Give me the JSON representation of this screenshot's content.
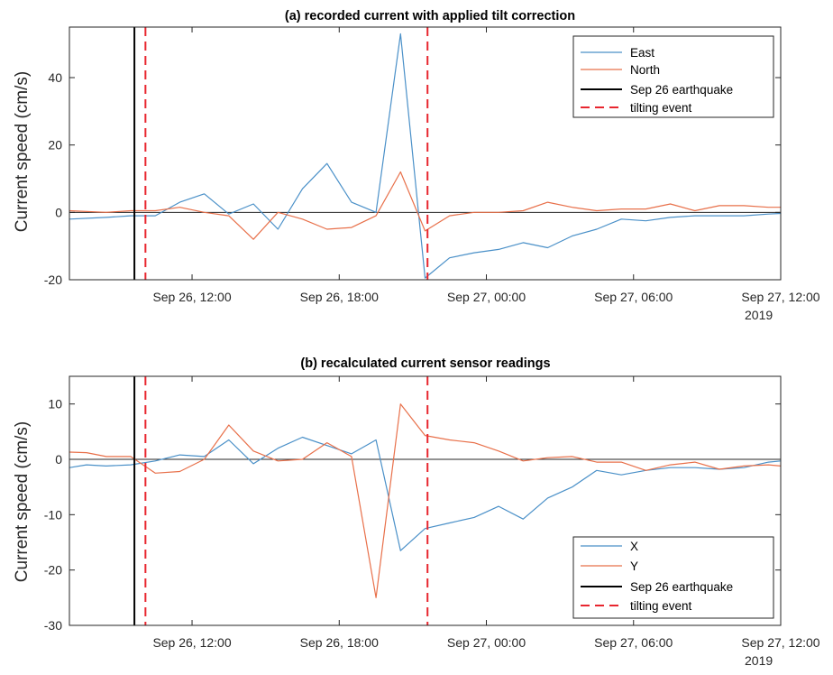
{
  "chart_data": [
    {
      "type": "line",
      "title": "(a) recorded current with applied tilt correction",
      "ylabel": "Current speed (cm/s)",
      "xlabel": "",
      "ylim": [
        -20,
        55
      ],
      "xlim": [
        7.0,
        36.0
      ],
      "x_unit": "hours after Sep 26, 00:00 (2019)",
      "yticks": [
        -20,
        0,
        20,
        40
      ],
      "xticks": [
        {
          "x": 12,
          "label": "Sep 26, 12:00",
          "sublabel": ""
        },
        {
          "x": 18,
          "label": "Sep 26, 18:00",
          "sublabel": ""
        },
        {
          "x": 24,
          "label": "Sep 27, 00:00",
          "sublabel": ""
        },
        {
          "x": 30,
          "label": "Sep 27, 06:00",
          "sublabel": ""
        },
        {
          "x": 36,
          "label": "Sep 27, 12:00",
          "sublabel": "2019"
        }
      ],
      "series": [
        {
          "name": "East",
          "color": "#4a90c8",
          "x": [
            7.0,
            8.5,
            9.5,
            10.5,
            11.5,
            12.5,
            13.5,
            14.5,
            15.5,
            16.5,
            17.5,
            18.5,
            19.5,
            20.5,
            21.5,
            22.5,
            23.5,
            24.5,
            25.5,
            26.5,
            27.5,
            28.5,
            29.5,
            30.5,
            31.5,
            32.5,
            33.5,
            34.5,
            35.5,
            36.0
          ],
          "y": [
            -2,
            -1.5,
            -1,
            -1,
            3,
            5.5,
            -0.5,
            2.5,
            -5,
            7,
            14.5,
            3,
            0,
            53,
            -19.5,
            -13.5,
            -12,
            -11,
            -9,
            -10.5,
            -7,
            -5,
            -2,
            -2.5,
            -1.5,
            -1,
            -1,
            -1,
            -0.5,
            -0.3
          ]
        },
        {
          "name": "North",
          "color": "#e8704a",
          "x": [
            7.0,
            8.5,
            9.5,
            10.5,
            11.5,
            12.5,
            13.5,
            14.5,
            15.5,
            16.5,
            17.5,
            18.5,
            19.5,
            20.5,
            21.5,
            22.5,
            23.5,
            24.5,
            25.5,
            26.5,
            27.5,
            28.5,
            29.5,
            30.5,
            31.5,
            32.5,
            33.5,
            34.5,
            35.5,
            36.0
          ],
          "y": [
            0.5,
            0,
            0.5,
            0.5,
            1.5,
            0,
            -1,
            -8,
            0,
            -2,
            -5,
            -4.5,
            -1,
            12,
            -5.5,
            -1,
            0,
            0,
            0.5,
            3,
            1.5,
            0.5,
            1,
            1,
            2.5,
            0.5,
            2,
            2,
            1.5,
            1.5
          ]
        },
        {
          "name": "Sep 26 earthquake",
          "color": "#000000",
          "kind": "vline",
          "x": 9.65
        },
        {
          "name": "tilting event",
          "color": "#e8262f",
          "kind": "vline-dashed",
          "x": [
            10.1,
            21.6
          ]
        }
      ],
      "hline": 0,
      "legend": "top-right"
    },
    {
      "type": "line",
      "title": "(b) recalculated current sensor readings",
      "ylabel": "Current speed (cm/s)",
      "xlabel": "",
      "ylim": [
        -30,
        15
      ],
      "xlim": [
        7.0,
        36.0
      ],
      "x_unit": "hours after Sep 26, 00:00 (2019)",
      "yticks": [
        -30,
        -20,
        -10,
        0,
        10
      ],
      "xticks": [
        {
          "x": 12,
          "label": "Sep 26, 12:00",
          "sublabel": ""
        },
        {
          "x": 18,
          "label": "Sep 26, 18:00",
          "sublabel": ""
        },
        {
          "x": 24,
          "label": "Sep 27, 00:00",
          "sublabel": ""
        },
        {
          "x": 30,
          "label": "Sep 27, 06:00",
          "sublabel": ""
        },
        {
          "x": 36,
          "label": "Sep 27, 12:00",
          "sublabel": "2019"
        }
      ],
      "series": [
        {
          "name": "X",
          "color": "#4a90c8",
          "x": [
            7.0,
            7.7,
            8.5,
            9.5,
            10.5,
            11.5,
            12.5,
            13.5,
            14.5,
            15.5,
            16.5,
            17.5,
            18.5,
            19.5,
            20.5,
            21.5,
            22.5,
            23.5,
            24.5,
            25.5,
            26.5,
            27.5,
            28.5,
            29.5,
            30.5,
            31.5,
            32.5,
            33.5,
            34.5,
            35.5,
            36.0
          ],
          "y": [
            -1.5,
            -1,
            -1.2,
            -1,
            -0.3,
            0.8,
            0.5,
            3.5,
            -0.8,
            2,
            4,
            2.5,
            1,
            3.5,
            -16.5,
            -12.5,
            -11.5,
            -10.5,
            -8.5,
            -10.8,
            -7,
            -5,
            -2,
            -2.8,
            -2,
            -1.5,
            -1.5,
            -1.8,
            -1.5,
            -0.5,
            -0.3
          ]
        },
        {
          "name": "Y",
          "color": "#e8704a",
          "x": [
            7.0,
            7.7,
            8.5,
            9.5,
            10.5,
            11.5,
            12.5,
            13.5,
            14.5,
            15.5,
            16.5,
            17.5,
            18.5,
            19.5,
            20.5,
            21.5,
            22.5,
            23.5,
            24.5,
            25.5,
            26.5,
            27.5,
            28.5,
            29.5,
            30.5,
            31.5,
            32.5,
            33.5,
            34.5,
            35.5,
            36.0
          ],
          "y": [
            1.3,
            1.2,
            0.5,
            0.5,
            -2.5,
            -2.2,
            0,
            6.2,
            1.5,
            -0.3,
            0,
            3,
            0.5,
            -25,
            10,
            4.3,
            3.5,
            3,
            1.5,
            -0.3,
            0.3,
            0.5,
            -0.5,
            -0.5,
            -2,
            -1,
            -0.5,
            -1.8,
            -1.2,
            -1,
            -1.2
          ]
        },
        {
          "name": "Sep 26 earthquake",
          "color": "#000000",
          "kind": "vline",
          "x": 9.65
        },
        {
          "name": "tilting event",
          "color": "#e8262f",
          "kind": "vline-dashed",
          "x": [
            10.1,
            21.6
          ]
        }
      ],
      "hline": 0,
      "legend": "bottom-right"
    }
  ]
}
